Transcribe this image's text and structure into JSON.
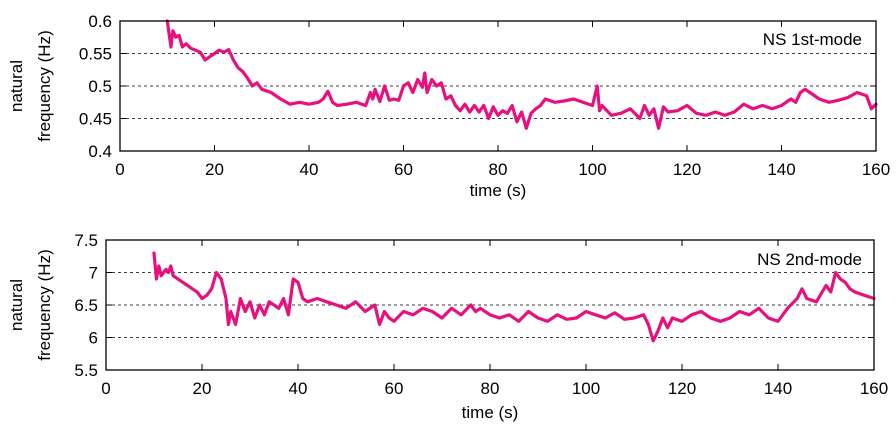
{
  "chart_data": [
    {
      "type": "line",
      "legend": "NS 1st-mode",
      "legend_position": "top-right",
      "xlabel": "time (s)",
      "ylabel_lines": [
        "natural",
        "frequency (Hz)"
      ],
      "xlim": [
        0,
        160
      ],
      "ylim": [
        0.4,
        0.6
      ],
      "xticks": [
        0,
        20,
        40,
        60,
        80,
        100,
        120,
        140,
        160
      ],
      "yticks": [
        0.4,
        0.45,
        0.5,
        0.55,
        0.6
      ],
      "xtick_labels": [
        "0",
        "20",
        "40",
        "60",
        "80",
        "100",
        "120",
        "140",
        "160"
      ],
      "ytick_labels": [
        "0.4",
        "0.45",
        "0.5",
        "0.55",
        "0.6"
      ],
      "grid_y": [
        0.45,
        0.5,
        0.55
      ],
      "grid": "horizontal dashed",
      "color": "#e6117f",
      "x": [
        10,
        10.8,
        11.2,
        11.8,
        12.5,
        13.2,
        14,
        15,
        16,
        17,
        18,
        19,
        20,
        21,
        22,
        23,
        24,
        25,
        26,
        27,
        28,
        29,
        30,
        32,
        34,
        36,
        38,
        40,
        42,
        43,
        44,
        45,
        46,
        48,
        50,
        52,
        53,
        53.5,
        54,
        55,
        56,
        57,
        58,
        59,
        60,
        61,
        62,
        63,
        64,
        64.5,
        65,
        66,
        67,
        68,
        69,
        70,
        71,
        72,
        73,
        74,
        75,
        76,
        77,
        78,
        79,
        80,
        81,
        82,
        83,
        84,
        85,
        86,
        87,
        88,
        89,
        90,
        92,
        94,
        96,
        98,
        100,
        101,
        101.5,
        102,
        104,
        106,
        108,
        110,
        111,
        112,
        113,
        114,
        115,
        116,
        118,
        120,
        122,
        124,
        126,
        128,
        130,
        132,
        134,
        136,
        138,
        140,
        142,
        143,
        144,
        145,
        146,
        148,
        150,
        152,
        154,
        156,
        158,
        159,
        160
      ],
      "y": [
        0.6,
        0.56,
        0.585,
        0.575,
        0.578,
        0.56,
        0.565,
        0.558,
        0.555,
        0.552,
        0.54,
        0.545,
        0.55,
        0.555,
        0.552,
        0.556,
        0.54,
        0.528,
        0.522,
        0.512,
        0.5,
        0.505,
        0.495,
        0.49,
        0.48,
        0.472,
        0.475,
        0.472,
        0.475,
        0.48,
        0.492,
        0.475,
        0.47,
        0.472,
        0.475,
        0.47,
        0.49,
        0.48,
        0.495,
        0.476,
        0.5,
        0.478,
        0.48,
        0.478,
        0.5,
        0.505,
        0.49,
        0.51,
        0.498,
        0.52,
        0.49,
        0.51,
        0.5,
        0.505,
        0.48,
        0.485,
        0.47,
        0.462,
        0.472,
        0.46,
        0.47,
        0.46,
        0.47,
        0.45,
        0.468,
        0.455,
        0.462,
        0.458,
        0.47,
        0.445,
        0.46,
        0.435,
        0.458,
        0.465,
        0.47,
        0.48,
        0.475,
        0.477,
        0.48,
        0.475,
        0.47,
        0.5,
        0.462,
        0.47,
        0.455,
        0.458,
        0.465,
        0.45,
        0.47,
        0.455,
        0.465,
        0.435,
        0.468,
        0.46,
        0.462,
        0.47,
        0.458,
        0.455,
        0.46,
        0.455,
        0.46,
        0.472,
        0.465,
        0.47,
        0.465,
        0.47,
        0.48,
        0.475,
        0.49,
        0.495,
        0.49,
        0.48,
        0.475,
        0.478,
        0.482,
        0.49,
        0.485,
        0.465,
        0.472
      ]
    },
    {
      "type": "line",
      "legend": "NS 2nd-mode",
      "legend_position": "top-right",
      "xlabel": "time (s)",
      "ylabel_lines": [
        "natural",
        "frequency (Hz)"
      ],
      "xlim": [
        0,
        160
      ],
      "ylim": [
        5.5,
        7.5
      ],
      "xticks": [
        0,
        20,
        40,
        60,
        80,
        100,
        120,
        140,
        160
      ],
      "yticks": [
        5.5,
        6,
        6.5,
        7,
        7.5
      ],
      "xtick_labels": [
        "0",
        "20",
        "40",
        "60",
        "80",
        "100",
        "120",
        "140",
        "160"
      ],
      "ytick_labels": [
        "5.5",
        "6",
        "6.5",
        "7",
        "7.5"
      ],
      "grid_y": [
        6,
        6.5,
        7
      ],
      "grid": "horizontal dashed",
      "color": "#e6117f",
      "x": [
        10,
        10.5,
        11,
        11.5,
        12,
        12.5,
        13,
        13.5,
        14,
        15,
        16,
        17,
        18,
        19,
        20,
        21,
        22,
        23,
        24,
        25,
        25.5,
        26,
        27,
        28,
        29,
        30,
        31,
        32,
        33,
        34,
        35,
        36,
        37,
        38,
        39,
        40,
        41,
        42,
        44,
        46,
        48,
        50,
        52,
        54,
        56,
        57,
        58,
        59,
        60,
        62,
        64,
        66,
        68,
        70,
        72,
        74,
        76,
        77,
        78,
        80,
        82,
        84,
        86,
        88,
        90,
        92,
        94,
        96,
        98,
        100,
        102,
        104,
        106,
        108,
        110,
        112,
        113,
        114,
        115,
        116,
        117,
        118,
        120,
        122,
        124,
        126,
        128,
        130,
        132,
        134,
        136,
        138,
        140,
        142,
        144,
        145,
        146,
        148,
        150,
        151,
        152,
        153,
        154,
        155,
        156,
        158,
        160
      ],
      "y": [
        7.3,
        6.9,
        7.1,
        6.95,
        7.0,
        7.05,
        7.0,
        7.1,
        6.95,
        6.9,
        6.85,
        6.8,
        6.75,
        6.7,
        6.6,
        6.65,
        6.75,
        7.0,
        6.9,
        6.6,
        6.2,
        6.4,
        6.2,
        6.6,
        6.4,
        6.55,
        6.3,
        6.5,
        6.35,
        6.55,
        6.5,
        6.45,
        6.6,
        6.35,
        6.9,
        6.85,
        6.6,
        6.55,
        6.6,
        6.55,
        6.5,
        6.45,
        6.55,
        6.4,
        6.5,
        6.2,
        6.4,
        6.3,
        6.25,
        6.4,
        6.35,
        6.45,
        6.4,
        6.3,
        6.45,
        6.35,
        6.5,
        6.4,
        6.45,
        6.35,
        6.3,
        6.35,
        6.25,
        6.4,
        6.3,
        6.25,
        6.35,
        6.28,
        6.3,
        6.4,
        6.35,
        6.3,
        6.38,
        6.28,
        6.3,
        6.35,
        6.2,
        5.95,
        6.1,
        6.3,
        6.15,
        6.3,
        6.25,
        6.35,
        6.4,
        6.3,
        6.25,
        6.3,
        6.4,
        6.35,
        6.45,
        6.3,
        6.25,
        6.45,
        6.6,
        6.75,
        6.6,
        6.55,
        6.8,
        6.7,
        7.0,
        6.9,
        6.85,
        6.75,
        6.7,
        6.65,
        6.6
      ]
    }
  ]
}
